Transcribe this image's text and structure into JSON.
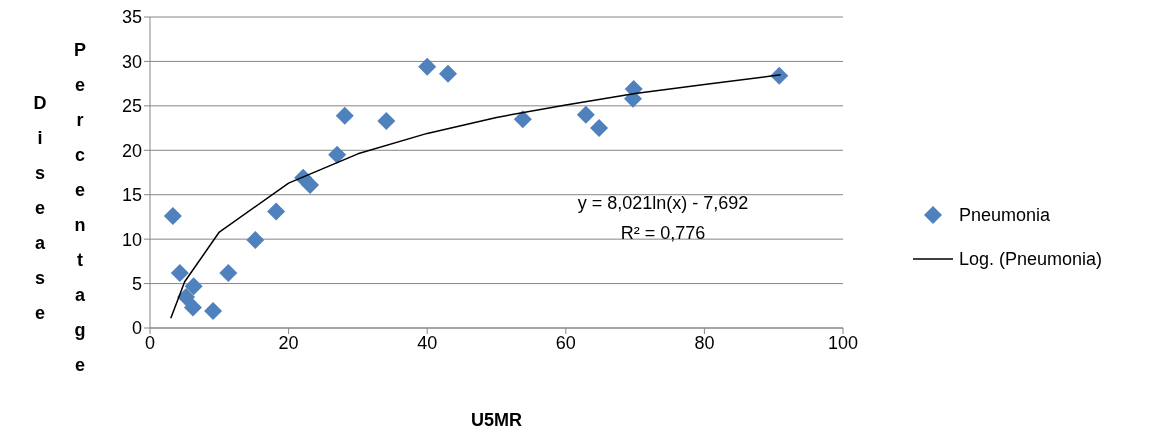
{
  "chart_data": {
    "type": "scatter",
    "xlabel": "U5MR",
    "ylabel": "Disease Percentage",
    "xlim": [
      0,
      100
    ],
    "xticks": [
      0,
      20,
      40,
      60,
      80,
      100
    ],
    "ylim": [
      0,
      35
    ],
    "yticks": [
      0,
      5,
      10,
      15,
      20,
      25,
      30,
      35
    ],
    "grid": "y",
    "legend": "right",
    "annotations": [
      "y = 8,021ln(x) - 7,692",
      "R² = 0,776"
    ],
    "series": [
      {
        "name": "Pneumonia",
        "type": "scatter",
        "marker": "diamond",
        "color": "#4f81bd",
        "x": [
          3.3,
          4.3,
          5.2,
          6.3,
          6.2,
          9.1,
          11.3,
          15.2,
          18.2,
          22.1,
          23.1,
          27,
          28.1,
          34.1,
          40,
          43,
          53.8,
          62.9,
          64.8,
          69.8,
          69.7,
          90.8
        ],
        "values": [
          12.6,
          6.2,
          3.5,
          4.7,
          2.3,
          1.9,
          6.2,
          9.9,
          13.1,
          16.9,
          16.1,
          19.5,
          23.9,
          23.3,
          29.4,
          28.6,
          23.5,
          24,
          22.5,
          26.9,
          25.8,
          28.4
        ]
      },
      {
        "name": "Log. (Pneumonia)",
        "type": "line",
        "marker": "none",
        "color": "#000000",
        "x": [
          3,
          5,
          10,
          20,
          30,
          40,
          50,
          60,
          70,
          80,
          91
        ],
        "values": [
          1.1,
          5.2,
          10.8,
          16.3,
          19.6,
          21.9,
          23.7,
          25.1,
          26.4,
          27.4,
          28.5
        ]
      }
    ]
  }
}
